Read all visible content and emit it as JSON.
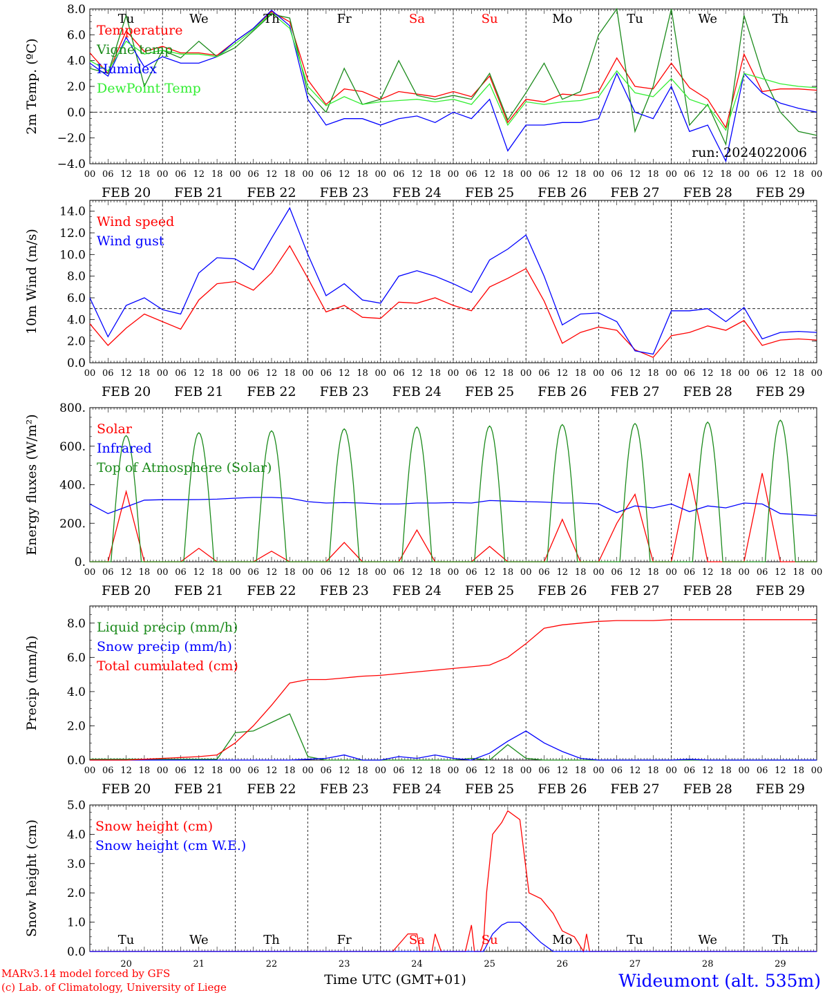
{
  "colors": {
    "red": "#ff0000",
    "green": "#1a8a1a",
    "lightgreen": "#33ee33",
    "blue": "#0000ff",
    "black": "#000000"
  },
  "header": {
    "run": "run: 2024022006"
  },
  "footer": {
    "model": "MARv3.14 model forced by GFS",
    "lab": "(c) Lab. of Climatology, University of Liege",
    "xlabel": "Time UTC (GMT+01)",
    "station": "Wideumont (alt. 535m)"
  },
  "days": {
    "weekday": [
      "Tu",
      "We",
      "Th",
      "Fr",
      "Sa",
      "Su",
      "Mo",
      "Tu",
      "We",
      "Th"
    ],
    "weekend_flags": [
      false,
      false,
      false,
      false,
      true,
      true,
      false,
      false,
      false,
      false
    ],
    "date_labels": [
      "FEB 20",
      "FEB 21",
      "FEB 22",
      "FEB 23",
      "FEB 24",
      "FEB 25",
      "FEB 26",
      "FEB 27",
      "FEB 28",
      "FEB 29"
    ],
    "day_numbers": [
      "20",
      "21",
      "22",
      "23",
      "24",
      "25",
      "26",
      "27",
      "28",
      "29"
    ],
    "hour_ticks": [
      "00",
      "06",
      "12",
      "18"
    ],
    "final_tick": "00"
  },
  "chart_data": [
    {
      "type": "line",
      "id": "temp",
      "ylabel": "2m Temp. (ºC)",
      "ylim": [
        -4,
        8
      ],
      "yticks": [
        "8.0",
        "6.0",
        "4.0",
        "2.0",
        "0.0",
        "−2.0",
        "−4.0"
      ],
      "ytick_values": [
        8,
        6,
        4,
        2,
        0,
        -2,
        -4
      ],
      "hline": 0,
      "x_hours": [
        0,
        6,
        12,
        18,
        24,
        30,
        36,
        42,
        48,
        54,
        60,
        66,
        72,
        78,
        84,
        90,
        96,
        102,
        108,
        114,
        120,
        126,
        132,
        138,
        144,
        150,
        156,
        162,
        168,
        174,
        180,
        186,
        192,
        198,
        204,
        210,
        216,
        222,
        228,
        234,
        240
      ],
      "series": [
        {
          "name": "Temperature",
          "color": "red",
          "values": [
            4.6,
            3.0,
            6.3,
            4.7,
            5.1,
            4.6,
            4.6,
            4.4,
            5.5,
            6.5,
            7.8,
            7.0,
            2.5,
            0.6,
            1.8,
            1.6,
            1.0,
            1.6,
            1.4,
            1.2,
            1.6,
            1.2,
            2.8,
            -0.8,
            1.0,
            0.8,
            1.4,
            1.3,
            1.6,
            4.2,
            2.0,
            1.8,
            3.8,
            1.9,
            1.0,
            -1.2,
            4.5,
            1.6,
            1.8,
            1.8,
            1.7
          ]
        },
        {
          "name": "Vigne temp",
          "color": "green",
          "values": [
            3.4,
            3.0,
            7.5,
            2.0,
            4.8,
            4.2,
            5.5,
            4.3,
            5.0,
            6.3,
            7.6,
            7.3,
            1.5,
            0.0,
            3.4,
            0.6,
            1.0,
            4.0,
            1.3,
            1.0,
            1.3,
            1.0,
            3.0,
            -0.6,
            1.5,
            3.8,
            1.0,
            1.6,
            6.0,
            8.0,
            -1.5,
            2.0,
            8.0,
            -1.0,
            0.6,
            -2.5,
            7.5,
            3.0,
            0.0,
            -1.5,
            -1.8
          ]
        },
        {
          "name": "Humidex",
          "color": "blue",
          "values": [
            3.8,
            2.8,
            5.8,
            3.5,
            4.3,
            3.8,
            3.8,
            4.3,
            5.5,
            6.5,
            7.9,
            6.7,
            1.0,
            -1.0,
            -0.5,
            -0.5,
            -1.0,
            -0.5,
            -0.3,
            -0.8,
            0.0,
            -0.5,
            1.0,
            -3.0,
            -1.0,
            -1.0,
            -0.8,
            -0.8,
            -0.5,
            3.0,
            0.0,
            -0.5,
            2.0,
            -1.5,
            -1.0,
            -3.8,
            3.0,
            1.5,
            0.7,
            0.3,
            0.0
          ]
        },
        {
          "name": "DewPoint Temp",
          "color": "lightgreen",
          "values": [
            4.0,
            3.2,
            5.5,
            4.5,
            4.8,
            4.5,
            4.5,
            4.3,
            5.3,
            6.4,
            7.7,
            6.5,
            2.0,
            0.5,
            1.2,
            0.6,
            0.8,
            0.9,
            1.0,
            0.8,
            1.0,
            0.6,
            2.2,
            -1.0,
            0.8,
            0.6,
            0.8,
            0.9,
            1.2,
            3.2,
            1.5,
            1.2,
            2.6,
            1.0,
            0.5,
            -1.4,
            3.0,
            2.6,
            2.2,
            2.0,
            1.9
          ]
        }
      ]
    },
    {
      "type": "line",
      "id": "wind",
      "ylabel": "10m Wind (m/s)",
      "ylim": [
        0,
        15
      ],
      "yticks": [
        "14.0",
        "12.0",
        "10.0",
        "8.0",
        "6.0",
        "4.0",
        "2.0",
        "0.0"
      ],
      "ytick_values": [
        14,
        12,
        10,
        8,
        6,
        4,
        2,
        0
      ],
      "hline": 5,
      "x_hours": [
        0,
        6,
        12,
        18,
        24,
        30,
        36,
        42,
        48,
        54,
        60,
        66,
        72,
        78,
        84,
        90,
        96,
        102,
        108,
        114,
        120,
        126,
        132,
        138,
        144,
        150,
        156,
        162,
        168,
        174,
        180,
        186,
        192,
        198,
        204,
        210,
        216,
        222,
        228,
        234,
        240
      ],
      "series": [
        {
          "name": "Wind speed",
          "color": "red",
          "values": [
            3.6,
            1.6,
            3.2,
            4.5,
            3.8,
            3.1,
            5.8,
            7.3,
            7.5,
            6.7,
            8.3,
            10.8,
            7.8,
            4.7,
            5.3,
            4.2,
            4.1,
            5.6,
            5.5,
            6.0,
            5.3,
            4.8,
            7.0,
            7.8,
            8.7,
            5.7,
            1.8,
            2.8,
            3.3,
            3.0,
            1.2,
            0.5,
            2.5,
            2.8,
            3.4,
            3.0,
            3.9,
            1.6,
            2.1,
            2.2,
            2.1
          ]
        },
        {
          "name": "Wind gust",
          "color": "blue",
          "values": [
            6.0,
            2.4,
            5.3,
            6.0,
            4.9,
            4.5,
            8.3,
            9.7,
            9.6,
            8.6,
            11.5,
            14.3,
            10.0,
            6.2,
            7.3,
            5.8,
            5.5,
            8.0,
            8.5,
            8.0,
            7.3,
            6.5,
            9.5,
            10.5,
            11.8,
            8.0,
            3.5,
            4.5,
            4.6,
            3.8,
            1.1,
            0.8,
            4.8,
            4.8,
            5.0,
            3.8,
            5.1,
            2.2,
            2.8,
            2.9,
            2.8
          ]
        }
      ]
    },
    {
      "type": "line",
      "id": "energy",
      "ylabel": "Energy fluxes (W/m²)",
      "ylim": [
        0,
        800
      ],
      "yticks": [
        "800.",
        "600.",
        "400.",
        "200.",
        "0."
      ],
      "ytick_values": [
        800,
        600,
        400,
        200,
        0
      ],
      "x_hours": [
        0,
        6,
        12,
        18,
        24,
        30,
        36,
        42,
        48,
        54,
        60,
        66,
        72,
        78,
        84,
        90,
        96,
        102,
        108,
        114,
        120,
        126,
        132,
        138,
        144,
        150,
        156,
        162,
        168,
        174,
        180,
        186,
        192,
        198,
        204,
        210,
        216,
        222,
        228,
        234,
        240
      ],
      "series": [
        {
          "name": "Solar",
          "color": "red",
          "values": [
            0,
            0,
            365,
            0,
            0,
            0,
            70,
            0,
            0,
            0,
            55,
            0,
            0,
            0,
            100,
            0,
            0,
            0,
            165,
            0,
            0,
            0,
            80,
            0,
            0,
            0,
            220,
            0,
            0,
            200,
            350,
            0,
            0,
            460,
            0,
            0,
            0,
            460,
            0,
            0,
            0
          ]
        },
        {
          "name": "Infrared",
          "color": "blue",
          "values": [
            300,
            250,
            285,
            320,
            322,
            322,
            323,
            325,
            330,
            334,
            334,
            330,
            312,
            305,
            307,
            305,
            300,
            300,
            305,
            305,
            307,
            305,
            318,
            315,
            312,
            310,
            305,
            305,
            300,
            255,
            290,
            280,
            300,
            260,
            290,
            280,
            305,
            300,
            250,
            245,
            240
          ]
        },
        {
          "name": "Top of Atmosphere (Solar)",
          "color": "green",
          "peaks": [
            655,
            670,
            680,
            690,
            700,
            705,
            712,
            718,
            725,
            735
          ]
        }
      ]
    },
    {
      "type": "line",
      "id": "precip",
      "ylabel": "Precip (mm/h)",
      "ylim": [
        0,
        9
      ],
      "yticks": [
        "8.0",
        "6.0",
        "4.0",
        "2.0",
        "0.0"
      ],
      "ytick_values": [
        8,
        6,
        4,
        2,
        0
      ],
      "x_hours": [
        0,
        6,
        12,
        18,
        24,
        30,
        36,
        42,
        48,
        54,
        60,
        66,
        72,
        78,
        84,
        90,
        96,
        102,
        108,
        114,
        120,
        126,
        132,
        138,
        144,
        150,
        156,
        162,
        168,
        174,
        180,
        186,
        192,
        198,
        204,
        210,
        216,
        222,
        228,
        234,
        240
      ],
      "series": [
        {
          "name": "Liquid precip (mm/h)",
          "color": "green",
          "values": [
            0.05,
            0.05,
            0.05,
            0.05,
            0.05,
            0.05,
            0.05,
            0.05,
            1.6,
            1.7,
            2.2,
            2.7,
            0.2,
            0.0,
            0.0,
            0.0,
            0.0,
            0.0,
            0.0,
            0.0,
            0.0,
            0.1,
            0.0,
            0.9,
            0.1,
            0.0,
            0.0,
            0.0,
            0.0,
            0.0,
            0.0,
            0.0,
            0.0,
            0.0,
            0.0,
            0.0,
            0.0,
            0.0,
            0.0,
            0.0,
            0.0
          ]
        },
        {
          "name": "Snow precip (mm/h)",
          "color": "blue",
          "values": [
            0.0,
            0.0,
            0.0,
            0.0,
            0.0,
            0.0,
            0.0,
            0.0,
            0.0,
            0.0,
            0.0,
            0.0,
            0.05,
            0.1,
            0.3,
            0.0,
            0.0,
            0.2,
            0.1,
            0.3,
            0.1,
            0.0,
            0.4,
            1.1,
            1.7,
            1.0,
            0.5,
            0.1,
            0.0,
            0.0,
            0.0,
            0.0,
            0.0,
            0.05,
            0.0,
            0.0,
            0.0,
            0.0,
            0.0,
            0.0,
            0.0
          ]
        },
        {
          "name": "Total cumulated (cm)",
          "color": "red",
          "values": [
            0.0,
            0.0,
            0.0,
            0.05,
            0.1,
            0.15,
            0.2,
            0.3,
            1.0,
            2.0,
            3.2,
            4.5,
            4.7,
            4.7,
            4.8,
            4.9,
            4.95,
            5.05,
            5.15,
            5.25,
            5.35,
            5.45,
            5.55,
            6.0,
            6.8,
            7.7,
            7.9,
            8.0,
            8.1,
            8.15,
            8.15,
            8.15,
            8.2,
            8.2,
            8.2,
            8.2,
            8.2,
            8.2,
            8.2,
            8.2,
            8.2
          ]
        }
      ]
    },
    {
      "type": "line",
      "id": "snow",
      "ylabel": "Snow height (cm)",
      "ylim": [
        0,
        5
      ],
      "yticks": [
        "5.0",
        "4.0",
        "3.0",
        "2.0",
        "1.0",
        "0.0"
      ],
      "ytick_values": [
        5,
        4,
        3,
        2,
        1,
        0
      ],
      "x_hours": [
        0,
        100,
        105,
        108,
        109,
        110,
        113,
        114,
        116,
        117,
        120,
        124,
        126,
        127,
        129,
        130,
        131,
        133,
        136,
        138,
        142,
        145,
        149,
        153,
        156,
        160,
        163,
        164,
        165,
        240
      ],
      "series": [
        {
          "name": "Snow height (cm)",
          "color": "red",
          "values": [
            0,
            0,
            0.6,
            0.6,
            0,
            0,
            0,
            0.6,
            0,
            0,
            0,
            0,
            0.9,
            0,
            0,
            0.3,
            2.0,
            4.0,
            4.4,
            4.8,
            4.5,
            2.0,
            1.8,
            1.3,
            0.7,
            0.5,
            0,
            0.6,
            0,
            0
          ]
        },
        {
          "name": "Snow height (cm W.E.)",
          "color": "blue",
          "values": [
            0,
            0,
            0,
            0,
            0,
            0,
            0,
            0,
            0,
            0,
            0,
            0,
            0,
            0,
            0,
            0,
            0.2,
            0.6,
            0.9,
            1.0,
            1.0,
            0.7,
            0.3,
            0,
            0,
            0,
            0,
            0,
            0,
            0
          ]
        }
      ]
    }
  ]
}
